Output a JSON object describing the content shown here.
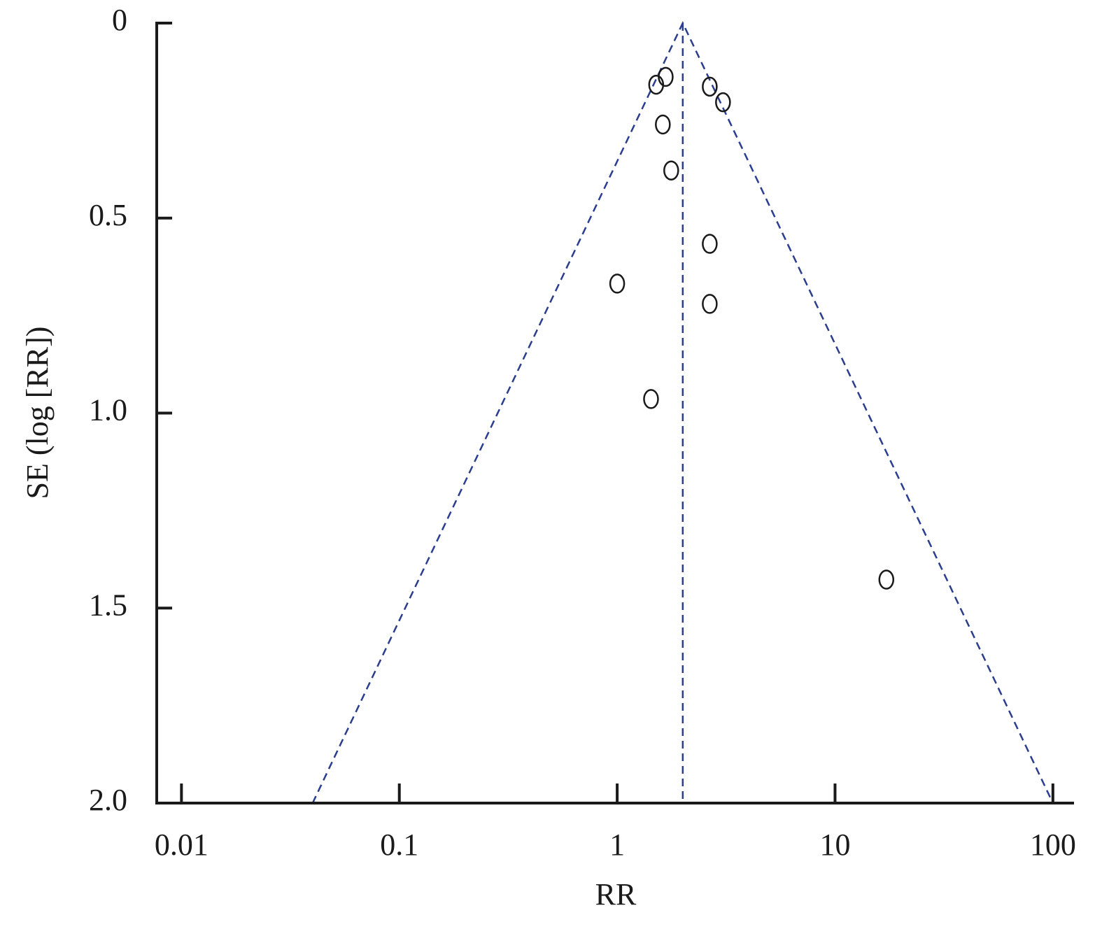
{
  "chart_data": {
    "type": "scatter",
    "x_label": "RR",
    "y_label": "SE (log [RR])",
    "x_scale": "log",
    "y_inverted": true,
    "xlim": [
      0.0077,
      125
    ],
    "ylim": [
      0,
      2
    ],
    "xticks": [
      0.01,
      0.1,
      1,
      10,
      100
    ],
    "yticks": [
      0,
      0.5,
      {
        "value": 1,
        "label": "1.0"
      },
      1.5,
      {
        "value": 2,
        "label": "2.0"
      }
    ],
    "series": [
      {
        "color": "#1a1a1a",
        "x": [
          1.51,
          1.67,
          2.66,
          3.06,
          1.62,
          1.77,
          2.66,
          1.0,
          2.66,
          1.43,
          17.2
        ],
        "values": [
          0.158,
          0.138,
          0.163,
          0.203,
          0.26,
          0.378,
          0.566,
          0.668,
          0.72,
          0.964,
          1.427
        ]
      }
    ],
    "reference_lines": [
      {
        "color": "#2a3d8f",
        "x": [
          0.04,
          2,
          100
        ],
        "values": [
          2,
          0,
          2
        ]
      },
      {
        "color": "#2a3d8f",
        "x": [
          2,
          2
        ],
        "values": [
          0,
          2
        ]
      }
    ]
  }
}
